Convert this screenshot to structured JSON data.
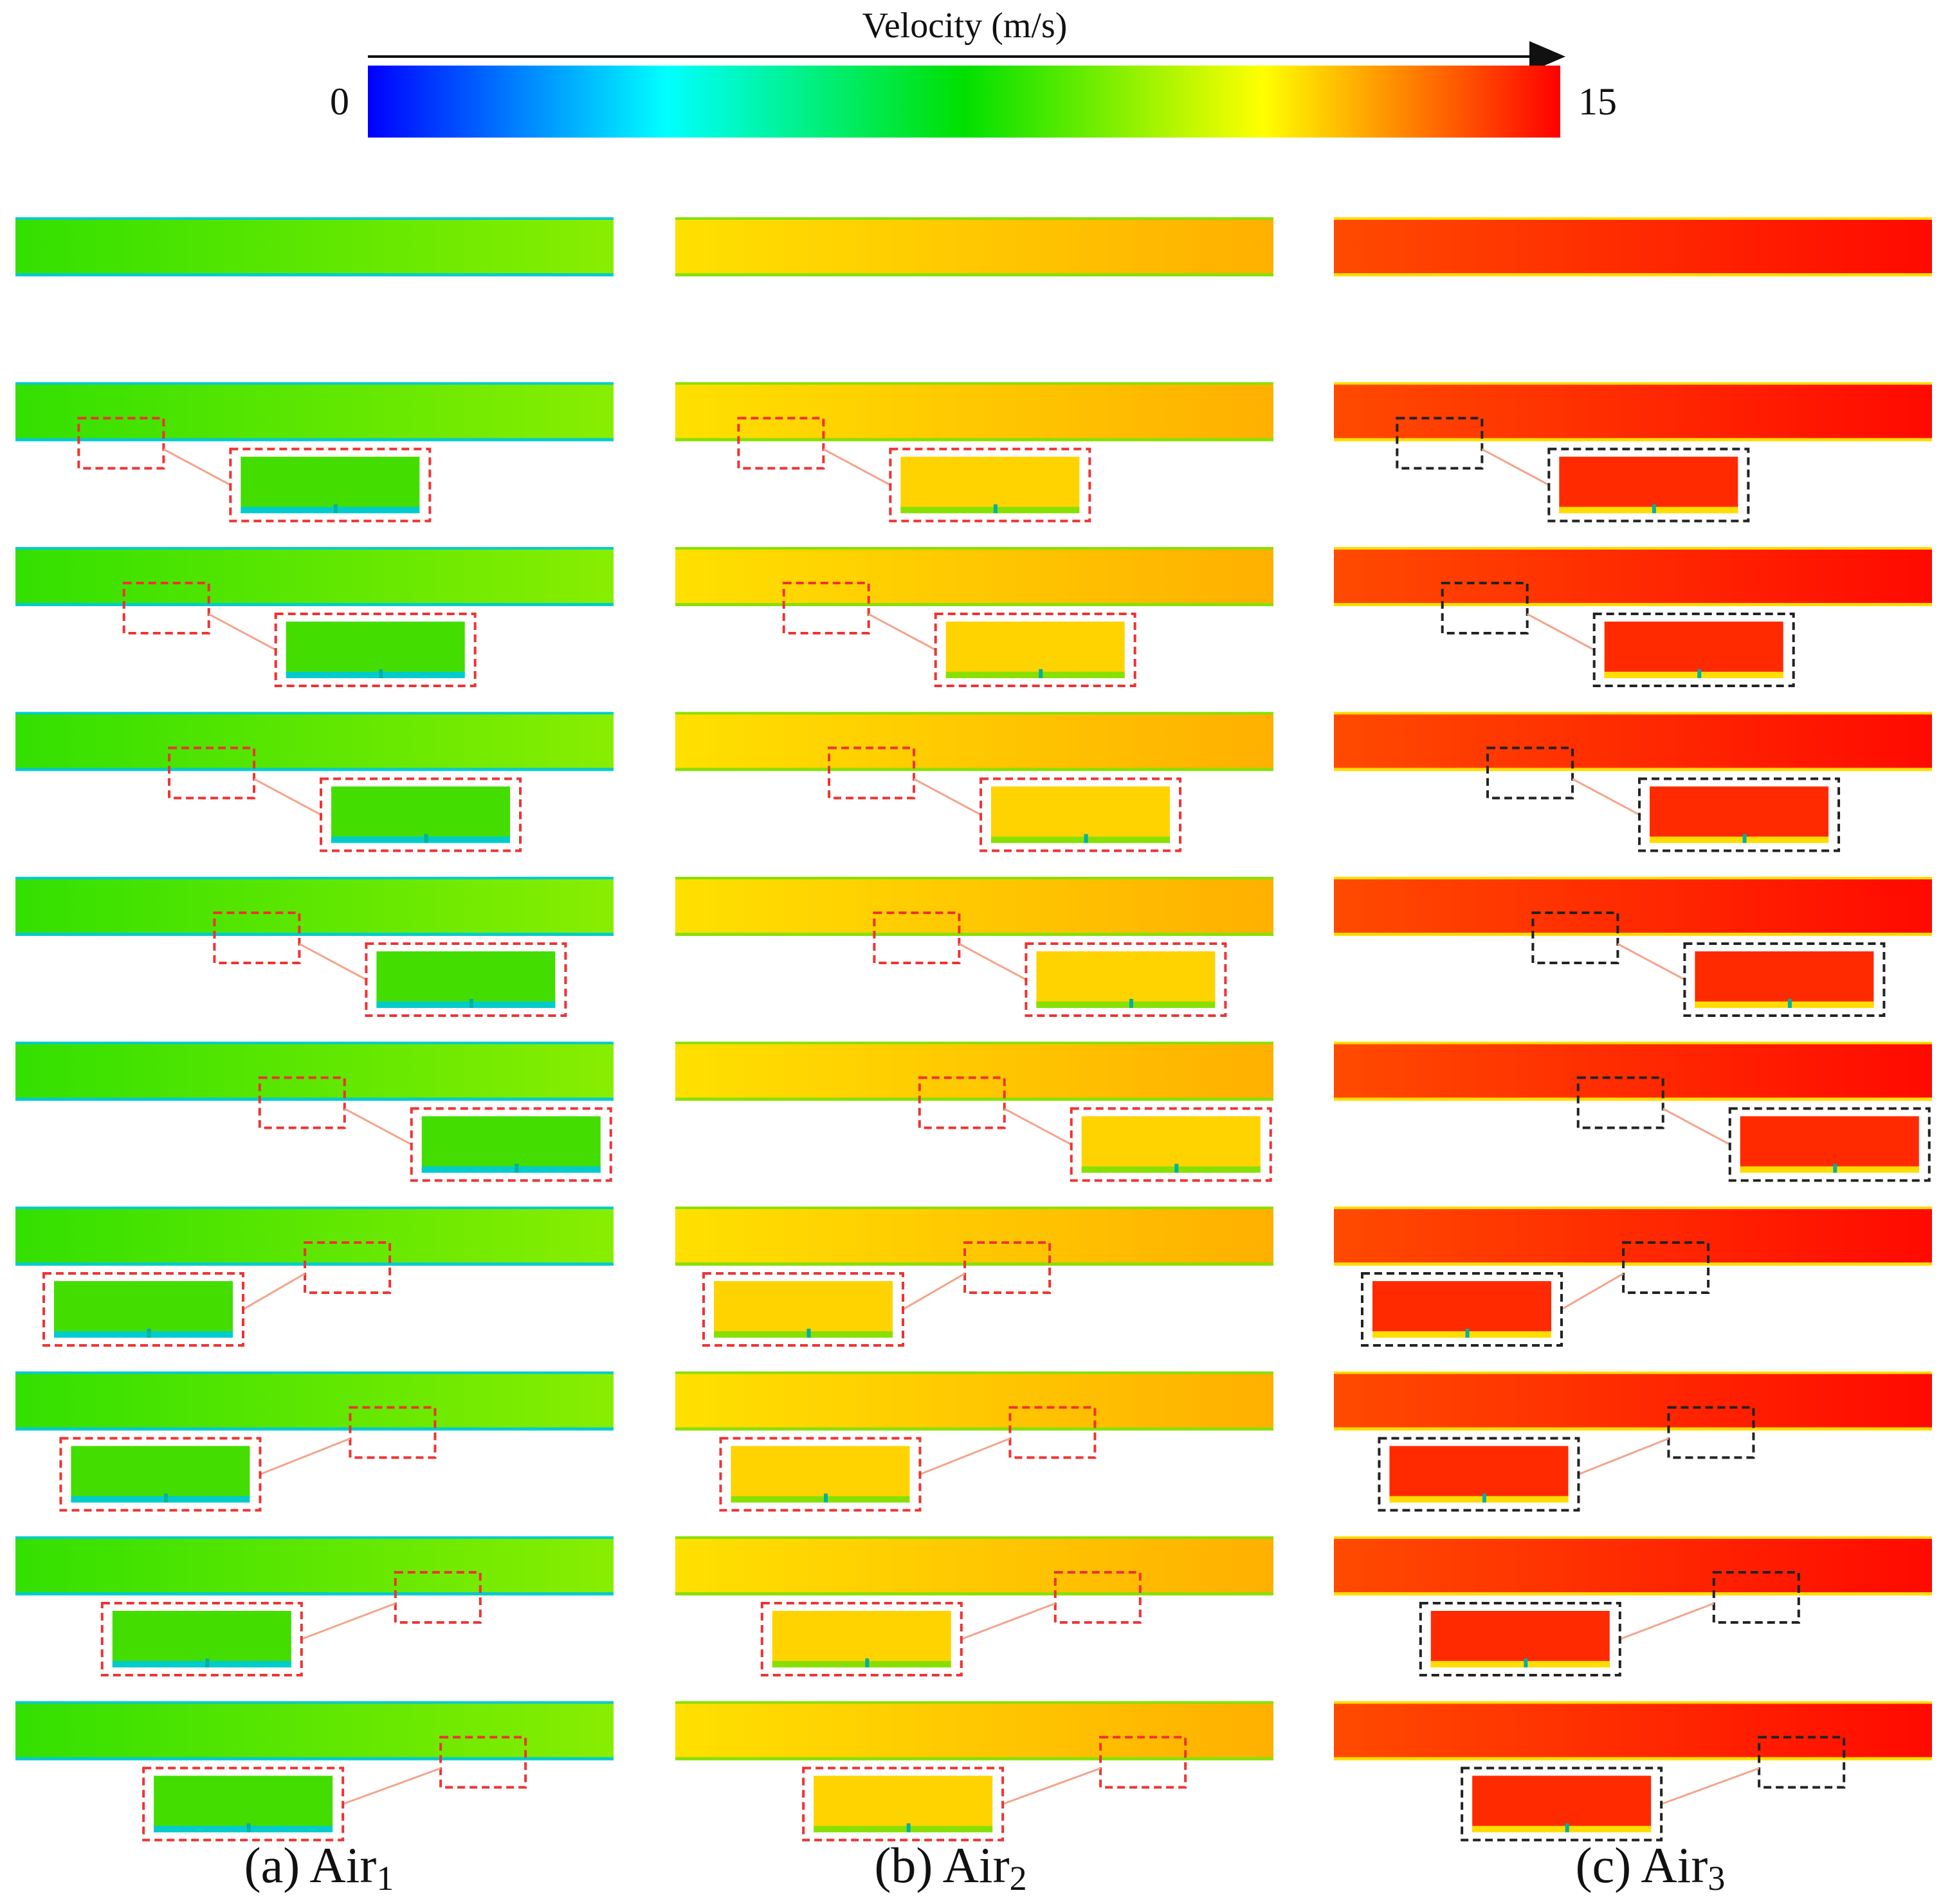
{
  "colorbar": {
    "title": "Velocity (m/s)",
    "min_label": "0",
    "max_label": "15",
    "min": 0,
    "max": 15,
    "stops": [
      {
        "value": 0.0,
        "color": "#0000ff"
      },
      {
        "value": 0.25,
        "color": "#00ffff"
      },
      {
        "value": 0.5,
        "color": "#00e000"
      },
      {
        "value": 0.75,
        "color": "#ffff00"
      },
      {
        "value": 1.0,
        "color": "#ff0000"
      }
    ]
  },
  "panels": [
    {
      "id": "a",
      "label_prefix": "(a) Air",
      "subscript": "1",
      "core_start": "#33e000",
      "core_end": "#88ee00",
      "wall_color": "#00cccc",
      "zoom_color": "#44dd00",
      "frame_color": "#ee3333",
      "connector_color": "#f4a48a"
    },
    {
      "id": "b",
      "label_prefix": "(b) Air",
      "subscript": "2",
      "core_start": "#ffe000",
      "core_end": "#ffb000",
      "wall_color": "#88e000",
      "zoom_color": "#ffd300",
      "frame_color": "#ee3333",
      "connector_color": "#f4a48a"
    },
    {
      "id": "c",
      "label_prefix": "(c) Air",
      "subscript": "3",
      "core_start": "#ff4a00",
      "core_end": "#ff0a00",
      "wall_color": "#ffdd00",
      "zoom_color": "#ff2a00",
      "frame_color": "#222222",
      "connector_color": "#f4a48a"
    }
  ],
  "rows": 10,
  "probe_positions": [
    null,
    0.1,
    0.2,
    0.3,
    0.4,
    0.5,
    0.6,
    0.7,
    0.8,
    0.9
  ]
}
